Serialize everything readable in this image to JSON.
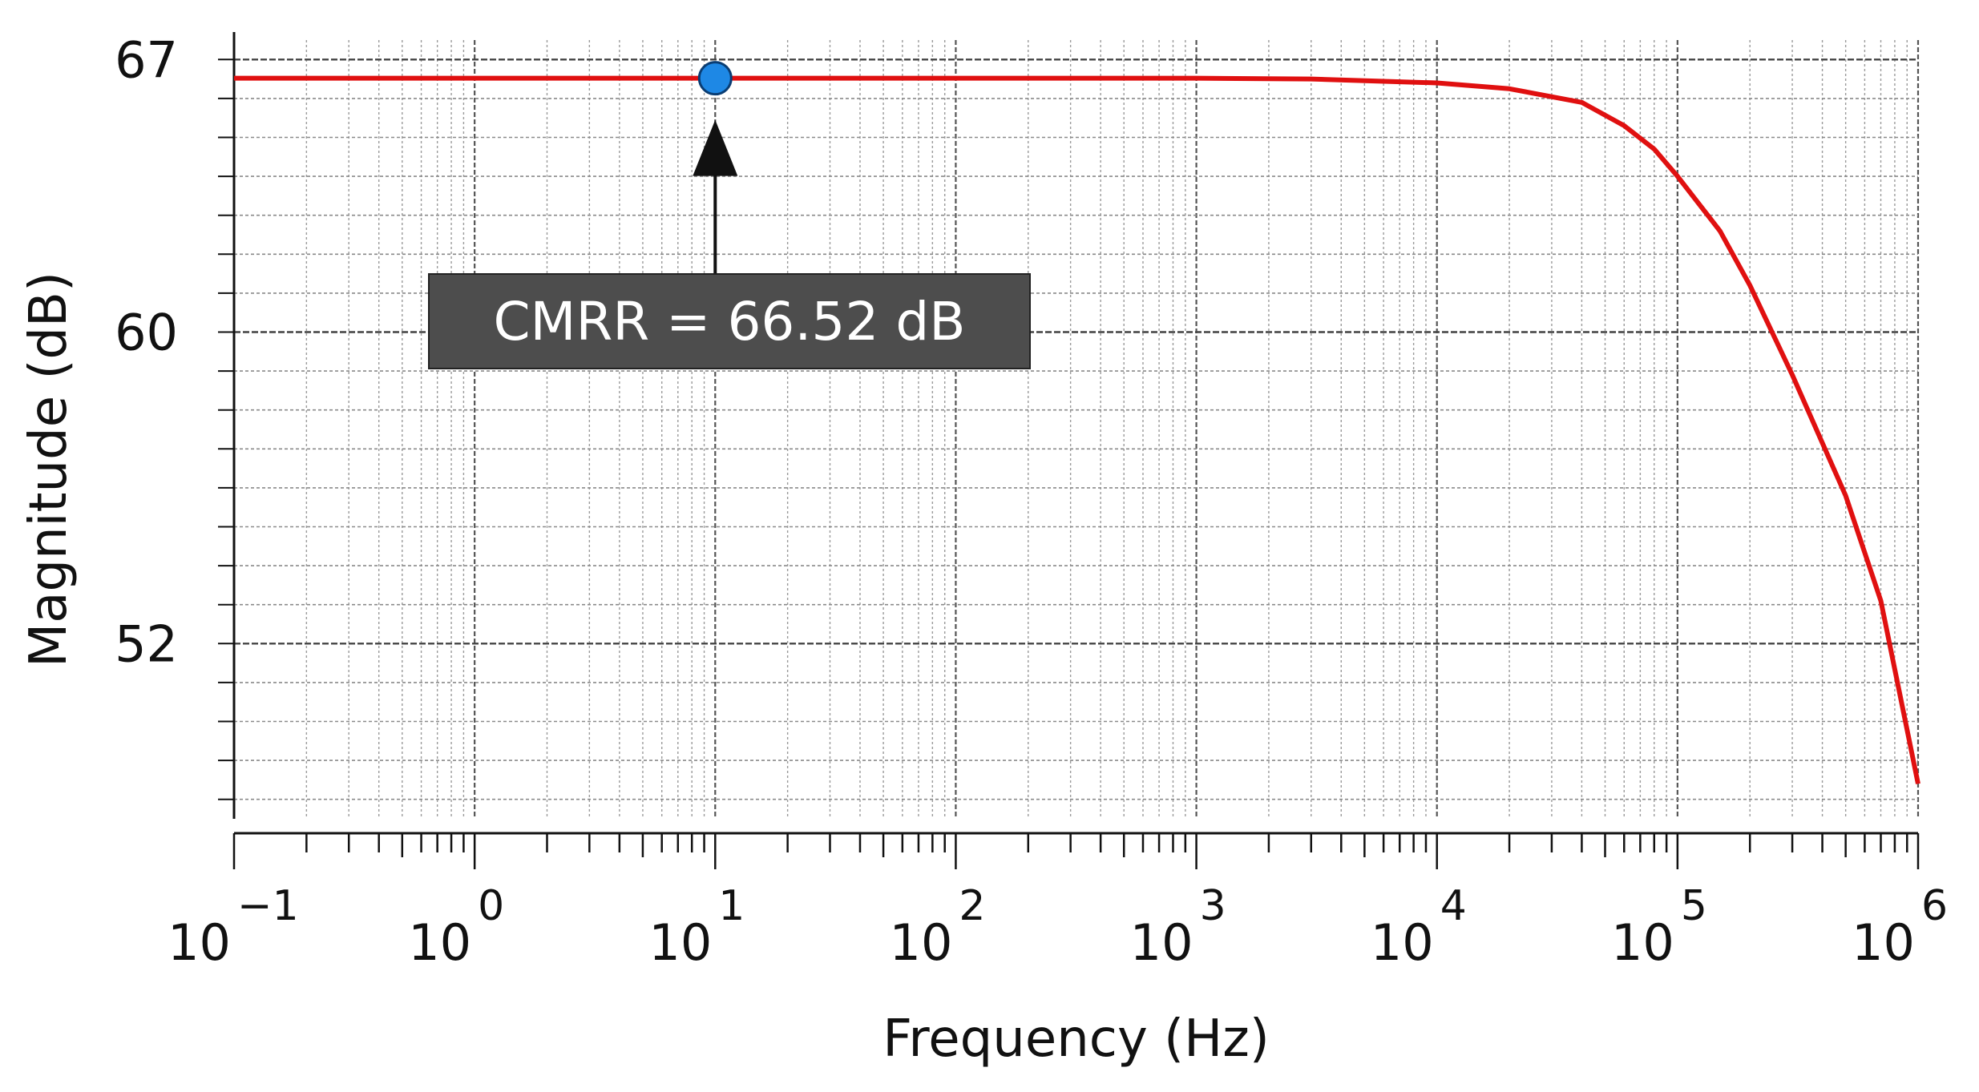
{
  "chart_data": {
    "type": "line",
    "xscale": "log",
    "xlim": [
      0.1,
      1000000
    ],
    "ylim": [
      47.5,
      67.5
    ],
    "xlabel": "Frequency (Hz)",
    "ylabel": "Magnitude (dB)",
    "grid": true,
    "x_tick_labels": [
      {
        "base": "10",
        "exp": "−1"
      },
      {
        "base": "10",
        "exp": "0"
      },
      {
        "base": "10",
        "exp": "1"
      },
      {
        "base": "10",
        "exp": "2"
      },
      {
        "base": "10",
        "exp": "3"
      },
      {
        "base": "10",
        "exp": "4"
      },
      {
        "base": "10",
        "exp": "5"
      },
      {
        "base": "10",
        "exp": "6"
      }
    ],
    "y_ticks": [
      67,
      60,
      52
    ],
    "y_tick_labels": [
      "67",
      "60",
      "52"
    ],
    "series": [
      {
        "color": "#e01010",
        "x": [
          0.1,
          1,
          10,
          100,
          1000,
          3000,
          10000,
          20000,
          40000,
          60000,
          80000,
          100000,
          150000,
          200000,
          300000,
          500000,
          700000,
          1000000
        ],
        "y": [
          66.52,
          66.52,
          66.52,
          66.52,
          66.52,
          66.5,
          66.4,
          66.25,
          65.9,
          65.3,
          64.7,
          64.0,
          62.6,
          61.2,
          58.9,
          55.8,
          53.1,
          48.4
        ]
      }
    ],
    "marker": {
      "x": 10,
      "y": 66.52,
      "color": "#1e88e5"
    },
    "annotation": {
      "text": "CMRR = 66.52 dB",
      "box_color": "#4d4d4d"
    }
  }
}
